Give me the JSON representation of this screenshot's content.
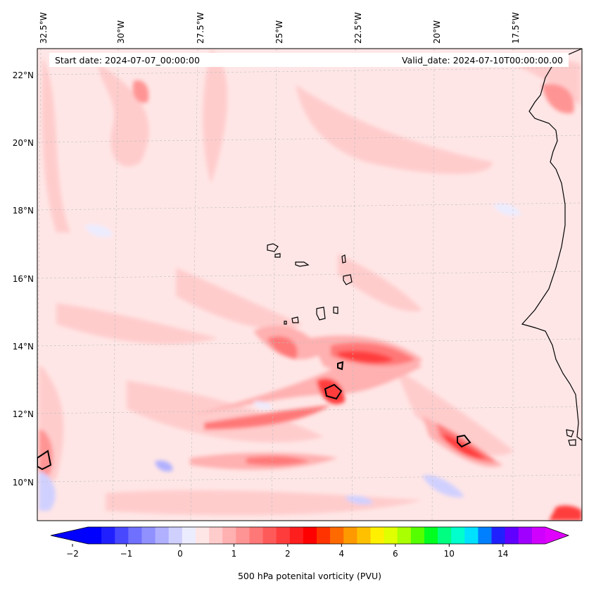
{
  "header": {
    "start_date": "Start date: 2024-07-07_00:00:00",
    "valid_date": "Valid_date: 2024-07-10T00:00:00.00"
  },
  "map": {
    "lon_labels": [
      "32.5°W",
      "30°W",
      "27.5°W",
      "25°W",
      "22.5°W",
      "20°W",
      "17.5°W"
    ],
    "lat_labels": [
      "22°N",
      "20°N",
      "18°N",
      "16°N",
      "14°N",
      "12°N",
      "10°N"
    ],
    "gridlines": true,
    "coastlines": true,
    "features": [
      "Cape Verde islands",
      "West African coast"
    ]
  },
  "colorbar": {
    "label": "500 hPa potenital vorticity (PVU)",
    "tick_labels": [
      "−2",
      "−1",
      "0",
      "1",
      "2",
      "4",
      "6",
      "10",
      "14"
    ],
    "extend": "both",
    "colors": [
      "#0000ff",
      "#2020ff",
      "#4848ff",
      "#7070ff",
      "#9090ff",
      "#b0b0ff",
      "#d0d0ff",
      "#ececff",
      "#ffe6e6",
      "#ffcccc",
      "#ffb0b0",
      "#ff9494",
      "#ff7878",
      "#ff5a5a",
      "#ff3c3c",
      "#ff1e1e",
      "#ff0000",
      "#ff3300",
      "#ff6a00",
      "#ff9900",
      "#ffc000",
      "#fff000",
      "#e0ff00",
      "#aaff00",
      "#55ff00",
      "#00ff20",
      "#00ff80",
      "#00ffcc",
      "#00e0ff",
      "#0080ff",
      "#2020ff",
      "#6000ff",
      "#a000ff",
      "#d000ff"
    ],
    "under_color": "#0000ff",
    "over_color": "#e000ff"
  }
}
